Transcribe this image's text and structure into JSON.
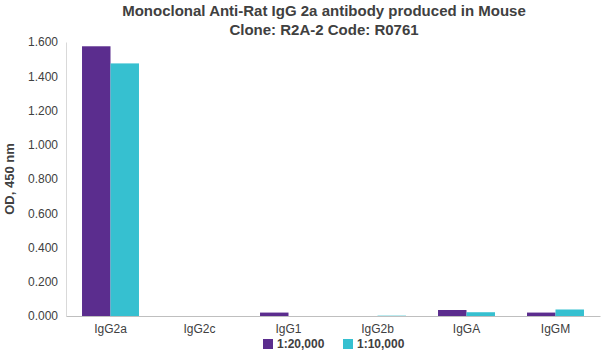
{
  "chart_data": {
    "type": "bar",
    "title": "Monoclonal Anti-Rat IgG 2a antibody produced in Mouse",
    "subtitle": "Clone: R2A-2  Code: R0761",
    "y_label": "OD, 450 nm",
    "categories": [
      "IgG2a",
      "IgG2c",
      "IgG1",
      "IgG2b",
      "IgGA",
      "IgGM"
    ],
    "series": [
      {
        "name": "1:20,000",
        "color": "#5b2d8e",
        "values": [
          1.575,
          0,
          0.02,
          0,
          0.035,
          0.02
        ]
      },
      {
        "name": "1:10,000",
        "color": "#36c0d0",
        "values": [
          1.475,
          0,
          0,
          0.002,
          0.022,
          0.038
        ]
      }
    ],
    "ylim": [
      0,
      1.6
    ],
    "yticks": [
      {
        "value": 0,
        "label": "0.000"
      },
      {
        "value": 0.2,
        "label": "0.200"
      },
      {
        "value": 0.4,
        "label": "0.400"
      },
      {
        "value": 0.6,
        "label": "0.600"
      },
      {
        "value": 0.8,
        "label": "0.800"
      },
      {
        "value": 1.0,
        "label": "1.000"
      },
      {
        "value": 1.2,
        "label": "1.200"
      },
      {
        "value": 1.4,
        "label": "1.400"
      },
      {
        "value": 1.6,
        "label": "1.600"
      }
    ],
    "grid": false,
    "legend": "bottom"
  }
}
